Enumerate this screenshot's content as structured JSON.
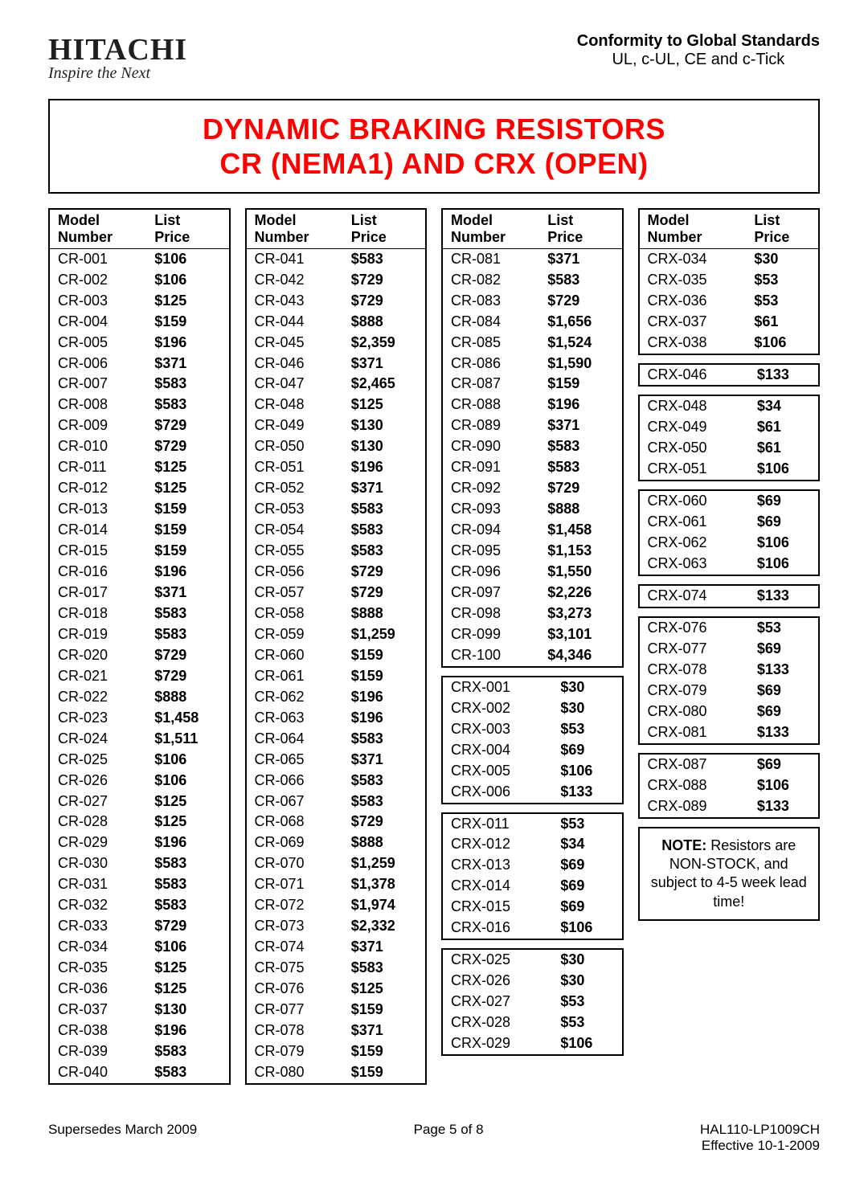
{
  "header": {
    "brand": "HITACHI",
    "tagline": "Inspire the Next",
    "standards_title": "Conformity to Global Standards",
    "standards_sub": "UL, c-UL, CE and c-Tick"
  },
  "title": {
    "line1": "DYNAMIC BRAKING RESISTORS",
    "line2": "CR (NEMA1) AND CRX (OPEN)"
  },
  "table_headers": {
    "model": "Model Number",
    "price": "List Price"
  },
  "columns": [
    [
      [
        {
          "m": "CR-001",
          "p": "$106"
        },
        {
          "m": "CR-002",
          "p": "$106"
        },
        {
          "m": "CR-003",
          "p": "$125"
        },
        {
          "m": "CR-004",
          "p": "$159"
        },
        {
          "m": "CR-005",
          "p": "$196"
        },
        {
          "m": "CR-006",
          "p": "$371"
        },
        {
          "m": "CR-007",
          "p": "$583"
        },
        {
          "m": "CR-008",
          "p": "$583"
        },
        {
          "m": "CR-009",
          "p": "$729"
        },
        {
          "m": "CR-010",
          "p": "$729"
        },
        {
          "m": "CR-011",
          "p": "$125"
        },
        {
          "m": "CR-012",
          "p": "$125"
        },
        {
          "m": "CR-013",
          "p": "$159"
        },
        {
          "m": "CR-014",
          "p": "$159"
        },
        {
          "m": "CR-015",
          "p": "$159"
        },
        {
          "m": "CR-016",
          "p": "$196"
        },
        {
          "m": "CR-017",
          "p": "$371"
        },
        {
          "m": "CR-018",
          "p": "$583"
        },
        {
          "m": "CR-019",
          "p": "$583"
        },
        {
          "m": "CR-020",
          "p": "$729"
        },
        {
          "m": "CR-021",
          "p": "$729"
        },
        {
          "m": "CR-022",
          "p": "$888"
        },
        {
          "m": "CR-023",
          "p": "$1,458"
        },
        {
          "m": "CR-024",
          "p": "$1,511"
        },
        {
          "m": "CR-025",
          "p": "$106"
        },
        {
          "m": "CR-026",
          "p": "$106"
        },
        {
          "m": "CR-027",
          "p": "$125"
        },
        {
          "m": "CR-028",
          "p": "$125"
        },
        {
          "m": "CR-029",
          "p": "$196"
        },
        {
          "m": "CR-030",
          "p": "$583"
        },
        {
          "m": "CR-031",
          "p": "$583"
        },
        {
          "m": "CR-032",
          "p": "$583"
        },
        {
          "m": "CR-033",
          "p": "$729"
        },
        {
          "m": "CR-034",
          "p": "$106"
        },
        {
          "m": "CR-035",
          "p": "$125"
        },
        {
          "m": "CR-036",
          "p": "$125"
        },
        {
          "m": "CR-037",
          "p": "$130"
        },
        {
          "m": "CR-038",
          "p": "$196"
        },
        {
          "m": "CR-039",
          "p": "$583"
        },
        {
          "m": "CR-040",
          "p": "$583"
        }
      ]
    ],
    [
      [
        {
          "m": "CR-041",
          "p": "$583"
        },
        {
          "m": "CR-042",
          "p": "$729"
        },
        {
          "m": "CR-043",
          "p": "$729"
        },
        {
          "m": "CR-044",
          "p": "$888"
        },
        {
          "m": "CR-045",
          "p": "$2,359"
        },
        {
          "m": "CR-046",
          "p": "$371"
        },
        {
          "m": "CR-047",
          "p": "$2,465"
        },
        {
          "m": "CR-048",
          "p": "$125"
        },
        {
          "m": "CR-049",
          "p": "$130"
        },
        {
          "m": "CR-050",
          "p": "$130"
        },
        {
          "m": "CR-051",
          "p": "$196"
        },
        {
          "m": "CR-052",
          "p": "$371"
        },
        {
          "m": "CR-053",
          "p": "$583"
        },
        {
          "m": "CR-054",
          "p": "$583"
        },
        {
          "m": "CR-055",
          "p": "$583"
        },
        {
          "m": "CR-056",
          "p": "$729"
        },
        {
          "m": "CR-057",
          "p": "$729"
        },
        {
          "m": "CR-058",
          "p": "$888"
        },
        {
          "m": "CR-059",
          "p": "$1,259"
        },
        {
          "m": "CR-060",
          "p": "$159"
        },
        {
          "m": "CR-061",
          "p": "$159"
        },
        {
          "m": "CR-062",
          "p": "$196"
        },
        {
          "m": "CR-063",
          "p": "$196"
        },
        {
          "m": "CR-064",
          "p": "$583"
        },
        {
          "m": "CR-065",
          "p": "$371"
        },
        {
          "m": "CR-066",
          "p": "$583"
        },
        {
          "m": "CR-067",
          "p": "$583"
        },
        {
          "m": "CR-068",
          "p": "$729"
        },
        {
          "m": "CR-069",
          "p": "$888"
        },
        {
          "m": "CR-070",
          "p": "$1,259"
        },
        {
          "m": "CR-071",
          "p": "$1,378"
        },
        {
          "m": "CR-072",
          "p": "$1,974"
        },
        {
          "m": "CR-073",
          "p": "$2,332"
        },
        {
          "m": "CR-074",
          "p": "$371"
        },
        {
          "m": "CR-075",
          "p": "$583"
        },
        {
          "m": "CR-076",
          "p": "$125"
        },
        {
          "m": "CR-077",
          "p": "$159"
        },
        {
          "m": "CR-078",
          "p": "$371"
        },
        {
          "m": "CR-079",
          "p": "$159"
        },
        {
          "m": "CR-080",
          "p": "$159"
        }
      ]
    ],
    [
      [
        {
          "m": "CR-081",
          "p": "$371"
        },
        {
          "m": "CR-082",
          "p": "$583"
        },
        {
          "m": "CR-083",
          "p": "$729"
        },
        {
          "m": "CR-084",
          "p": "$1,656"
        },
        {
          "m": "CR-085",
          "p": "$1,524"
        },
        {
          "m": "CR-086",
          "p": "$1,590"
        },
        {
          "m": "CR-087",
          "p": "$159"
        },
        {
          "m": "CR-088",
          "p": "$196"
        },
        {
          "m": "CR-089",
          "p": "$371"
        },
        {
          "m": "CR-090",
          "p": "$583"
        },
        {
          "m": "CR-091",
          "p": "$583"
        },
        {
          "m": "CR-092",
          "p": "$729"
        },
        {
          "m": "CR-093",
          "p": "$888"
        },
        {
          "m": "CR-094",
          "p": "$1,458"
        },
        {
          "m": "CR-095",
          "p": "$1,153"
        },
        {
          "m": "CR-096",
          "p": "$1,550"
        },
        {
          "m": "CR-097",
          "p": "$2,226"
        },
        {
          "m": "CR-098",
          "p": "$3,273"
        },
        {
          "m": "CR-099",
          "p": "$3,101"
        },
        {
          "m": "CR-100",
          "p": "$4,346"
        }
      ],
      [
        {
          "m": "CRX-001",
          "p": "$30"
        },
        {
          "m": "CRX-002",
          "p": "$30"
        },
        {
          "m": "CRX-003",
          "p": "$53"
        },
        {
          "m": "CRX-004",
          "p": "$69"
        },
        {
          "m": "CRX-005",
          "p": "$106"
        },
        {
          "m": "CRX-006",
          "p": "$133"
        }
      ],
      [
        {
          "m": "CRX-011",
          "p": "$53"
        },
        {
          "m": "CRX-012",
          "p": "$34"
        },
        {
          "m": "CRX-013",
          "p": "$69"
        },
        {
          "m": "CRX-014",
          "p": "$69"
        },
        {
          "m": "CRX-015",
          "p": "$69"
        },
        {
          "m": "CRX-016",
          "p": "$106"
        }
      ],
      [
        {
          "m": "CRX-025",
          "p": "$30"
        },
        {
          "m": "CRX-026",
          "p": "$30"
        },
        {
          "m": "CRX-027",
          "p": "$53"
        },
        {
          "m": "CRX-028",
          "p": "$53"
        },
        {
          "m": "CRX-029",
          "p": "$106"
        }
      ]
    ],
    [
      [
        {
          "m": "CRX-034",
          "p": "$30"
        },
        {
          "m": "CRX-035",
          "p": "$53"
        },
        {
          "m": "CRX-036",
          "p": "$53"
        },
        {
          "m": "CRX-037",
          "p": "$61"
        },
        {
          "m": "CRX-038",
          "p": "$106"
        }
      ],
      [
        {
          "m": "CRX-046",
          "p": "$133"
        }
      ],
      [
        {
          "m": "CRX-048",
          "p": "$34"
        },
        {
          "m": "CRX-049",
          "p": "$61"
        },
        {
          "m": "CRX-050",
          "p": "$61"
        },
        {
          "m": "CRX-051",
          "p": "$106"
        }
      ],
      [
        {
          "m": "CRX-060",
          "p": "$69"
        },
        {
          "m": "CRX-061",
          "p": "$69"
        },
        {
          "m": "CRX-062",
          "p": "$106"
        },
        {
          "m": "CRX-063",
          "p": "$106"
        }
      ],
      [
        {
          "m": "CRX-074",
          "p": "$133"
        }
      ],
      [
        {
          "m": "CRX-076",
          "p": "$53"
        },
        {
          "m": "CRX-077",
          "p": "$69"
        },
        {
          "m": "CRX-078",
          "p": "$133"
        },
        {
          "m": "CRX-079",
          "p": "$69"
        },
        {
          "m": "CRX-080",
          "p": "$69"
        },
        {
          "m": "CRX-081",
          "p": "$133"
        }
      ],
      [
        {
          "m": "CRX-087",
          "p": "$69"
        },
        {
          "m": "CRX-088",
          "p": "$106"
        },
        {
          "m": "CRX-089",
          "p": "$133"
        }
      ]
    ]
  ],
  "note": {
    "label": "NOTE:",
    "text": " Resistors are NON-STOCK, and subject to 4-5 week lead time!"
  },
  "footer": {
    "left": "Supersedes March 2009",
    "center": "Page 5 of 8",
    "doc": "HAL110-LP1009CH",
    "effective": "Effective 10-1-2009"
  },
  "style": {
    "title_color": "#ff0000",
    "text_color": "#000000",
    "border_color": "#000000",
    "background": "#ffffff",
    "title_fontsize": 36,
    "body_fontsize": 18,
    "header_fontsize": 20,
    "logo_fontsize": 38
  }
}
